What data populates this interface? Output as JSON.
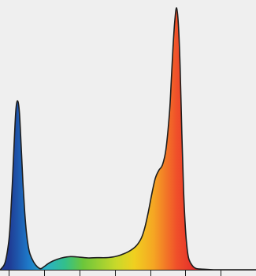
{
  "chart_data": {
    "type": "area",
    "title": "",
    "xlabel": "",
    "ylabel": "",
    "xlim": [
      -0.25,
      7.0
    ],
    "ylim": [
      0,
      1.0
    ],
    "x_ticks": [
      0,
      1,
      2,
      3,
      4,
      5,
      6,
      7
    ],
    "grid": false,
    "background": "#efefef",
    "outline_color": "#1e1e1e",
    "gradient_stops": [
      {
        "x": 0.0,
        "color": "#1f3a93"
      },
      {
        "x": 0.55,
        "color": "#1e78c8"
      },
      {
        "x": 1.05,
        "color": "#2ab0c8"
      },
      {
        "x": 1.6,
        "color": "#33c08a"
      },
      {
        "x": 2.1,
        "color": "#6cc63b"
      },
      {
        "x": 3.05,
        "color": "#c9d92a"
      },
      {
        "x": 3.55,
        "color": "#f0d020"
      },
      {
        "x": 4.1,
        "color": "#f5a623"
      },
      {
        "x": 4.75,
        "color": "#f0502a"
      },
      {
        "x": 5.3,
        "color": "#e32b2b"
      }
    ],
    "series": [
      {
        "x": [
          -0.25,
          -0.2,
          -0.1,
          0.0,
          0.05,
          0.1,
          0.15,
          0.2,
          0.25,
          0.3,
          0.35,
          0.4,
          0.45,
          0.5,
          0.55,
          0.6,
          0.7,
          0.8,
          0.9,
          1.0,
          1.1,
          1.2,
          1.3,
          1.5,
          1.75,
          2.0,
          2.25,
          2.5,
          2.75,
          3.0,
          3.2,
          3.4,
          3.6,
          3.75,
          3.85,
          3.95,
          4.05,
          4.15,
          4.25,
          4.35,
          4.45,
          4.55,
          4.6,
          4.65,
          4.7,
          4.75,
          4.8,
          4.85,
          4.9,
          4.95,
          5.0,
          5.05,
          5.1,
          5.2,
          5.3,
          5.5,
          5.8,
          6.2,
          6.6,
          7.0
        ],
        "y": [
          0.0,
          0.006,
          0.03,
          0.11,
          0.2,
          0.33,
          0.48,
          0.61,
          0.645,
          0.6,
          0.47,
          0.33,
          0.22,
          0.14,
          0.09,
          0.06,
          0.03,
          0.012,
          0.004,
          0.012,
          0.022,
          0.03,
          0.036,
          0.045,
          0.05,
          0.048,
          0.045,
          0.046,
          0.046,
          0.05,
          0.058,
          0.07,
          0.09,
          0.12,
          0.16,
          0.22,
          0.29,
          0.35,
          0.38,
          0.4,
          0.46,
          0.6,
          0.72,
          0.85,
          0.95,
          1.0,
          0.94,
          0.78,
          0.52,
          0.3,
          0.16,
          0.08,
          0.04,
          0.015,
          0.005,
          0.002,
          0.0,
          0.0,
          0.0,
          0.0
        ]
      }
    ]
  }
}
